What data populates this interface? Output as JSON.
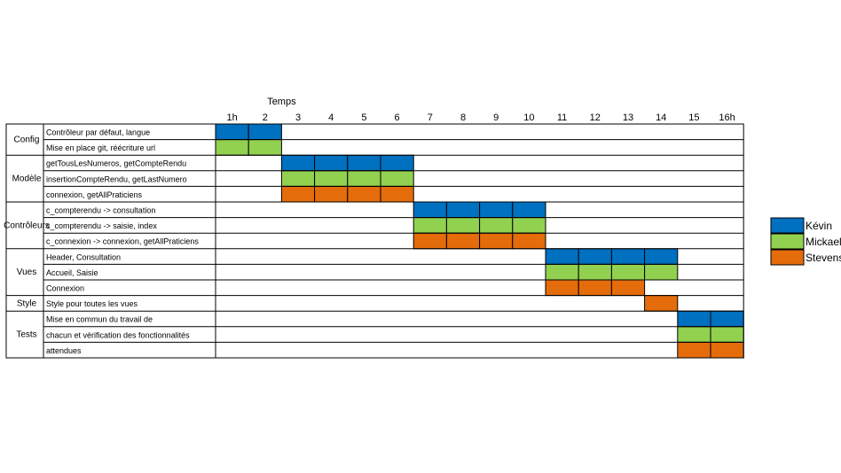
{
  "chart_data": {
    "type": "gantt",
    "title": "Temps",
    "hours": [
      "1h",
      "2",
      "3",
      "4",
      "5",
      "6",
      "7",
      "8",
      "9",
      "10",
      "11",
      "12",
      "13",
      "14",
      "15",
      "16h"
    ],
    "groups": [
      {
        "name": "Config",
        "rows": [
          0,
          1
        ]
      },
      {
        "name": "Modèle",
        "rows": [
          2,
          3,
          4
        ]
      },
      {
        "name": "Contrôleurs",
        "rows": [
          5,
          6,
          7
        ]
      },
      {
        "name": "Vues",
        "rows": [
          8,
          9,
          10
        ]
      },
      {
        "name": "Style",
        "rows": [
          11
        ]
      },
      {
        "name": "Tests",
        "rows": [
          12,
          13,
          14
        ]
      }
    ],
    "rows": [
      {
        "task": "Contrôleur par défaut, langue",
        "bars": [
          {
            "who": "Kévin",
            "start": 1,
            "end": 2
          }
        ]
      },
      {
        "task": "Mise en place git, réécriture url",
        "bars": [
          {
            "who": "Mickael",
            "start": 1,
            "end": 2
          }
        ]
      },
      {
        "task": "getTousLesNumeros,  getCompteRendu",
        "bars": [
          {
            "who": "Kévin",
            "start": 3,
            "end": 6
          }
        ]
      },
      {
        "task": "insertionCompteRendu, getLastNumero",
        "bars": [
          {
            "who": "Mickael",
            "start": 3,
            "end": 6
          }
        ]
      },
      {
        "task": "connexion, getAllPraticiens",
        "bars": [
          {
            "who": "Stevens",
            "start": 3,
            "end": 6
          }
        ]
      },
      {
        "task": "c_compterendu -> consultation",
        "bars": [
          {
            "who": "Kévin",
            "start": 7,
            "end": 10
          }
        ]
      },
      {
        "task": "c_compterendu -> saisie, index",
        "bars": [
          {
            "who": "Mickael",
            "start": 7,
            "end": 10
          }
        ]
      },
      {
        "task": "c_connexion -> connexion, getAllPraticiens",
        "bars": [
          {
            "who": "Stevens",
            "start": 7,
            "end": 10
          }
        ]
      },
      {
        "task": "Header, Consultation",
        "bars": [
          {
            "who": "Kévin",
            "start": 11,
            "end": 14
          }
        ]
      },
      {
        "task": "Accueil, Saisie",
        "bars": [
          {
            "who": "Mickael",
            "start": 11,
            "end": 14
          }
        ]
      },
      {
        "task": "Connexion",
        "bars": [
          {
            "who": "Stevens",
            "start": 11,
            "end": 13
          }
        ]
      },
      {
        "task": "Style pour toutes les vues",
        "bars": [
          {
            "who": "Stevens",
            "start": 14,
            "end": 14
          }
        ]
      },
      {
        "task": "Mise en commun du travail de",
        "bars": [
          {
            "who": "Kévin",
            "start": 15,
            "end": 16
          }
        ]
      },
      {
        "task": "chacun et vérification des fonctionnalités",
        "bars": [
          {
            "who": "Mickael",
            "start": 15,
            "end": 16
          }
        ]
      },
      {
        "task": "attendues",
        "bars": [
          {
            "who": "Stevens",
            "start": 15,
            "end": 16
          }
        ]
      }
    ],
    "legend": [
      {
        "name": "Kévin",
        "color": "#0070C0"
      },
      {
        "name": "Mickael",
        "color": "#92D050"
      },
      {
        "name": "Stevens",
        "color": "#E46C0A"
      }
    ],
    "legend_position": "right"
  }
}
